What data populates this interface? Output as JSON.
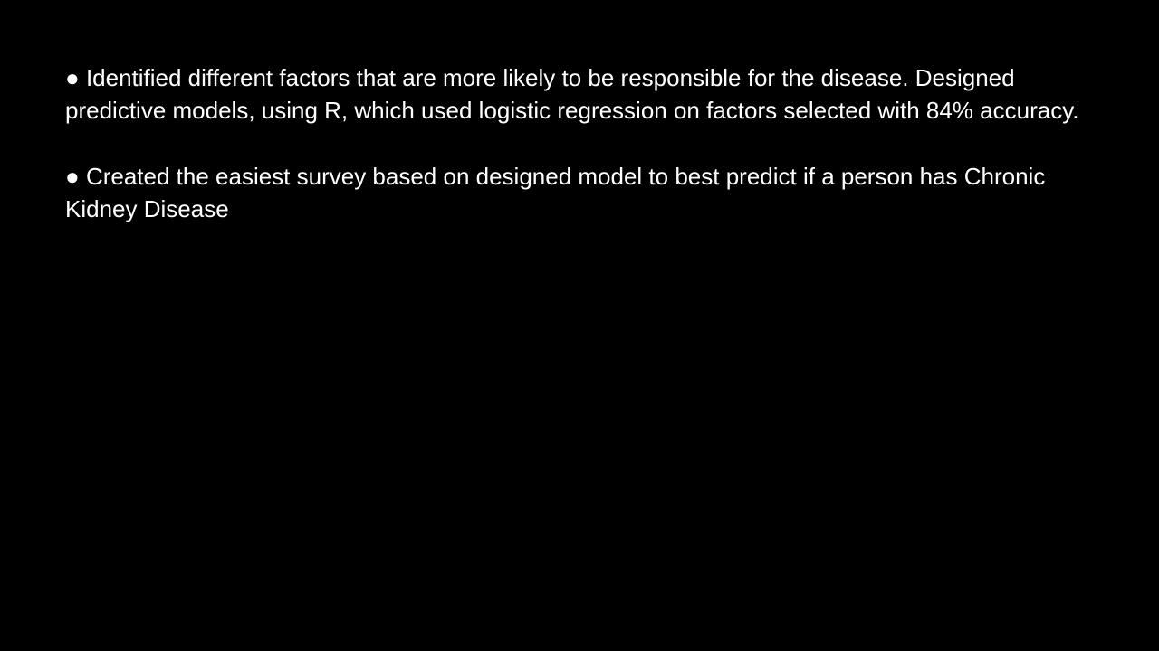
{
  "slide": {
    "background_color": "#000000",
    "text_color": "#ffffff",
    "bullets": [
      {
        "marker": "● ",
        "text": "Identified different factors that are more likely to be responsible for the disease. Designed predictive models, using R, which used logistic regression on factors selected with 84% accuracy."
      },
      {
        "marker": "● ",
        "text": "Created the easiest survey based on designed model to best predict if a person has Chronic Kidney Disease"
      }
    ]
  }
}
